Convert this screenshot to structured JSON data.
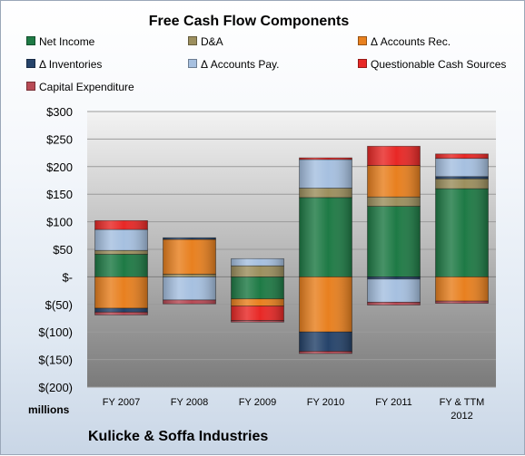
{
  "chart_data": {
    "type": "bar",
    "stacked": true,
    "title": "Free Cash Flow Components",
    "units_label": "millions",
    "company": "Kulicke & Soffa Industries",
    "categories": [
      "FY 2007",
      "FY 2008",
      "FY 2009",
      "FY 2010",
      "FY 2011",
      "FY & TTM 2012"
    ],
    "ylim": [
      -200,
      300
    ],
    "yticks": [
      300,
      250,
      200,
      150,
      100,
      50,
      0,
      -50,
      -100,
      -150,
      -200
    ],
    "ytick_labels": [
      "$300",
      "$250",
      "$200",
      "$150",
      "$100",
      "$50",
      "$-",
      "$(50)",
      "$(100)",
      "$(150)",
      "$(200)"
    ],
    "grid": true,
    "legend_position": "top",
    "series": [
      {
        "name": "Net Income",
        "color": "#1e7a45",
        "values": [
          41,
          0,
          -40,
          144,
          128,
          160
        ]
      },
      {
        "name": "D&A",
        "color": "#9c8f5e",
        "values": [
          7,
          5,
          20,
          17,
          17,
          18
        ]
      },
      {
        "name": "Δ Accounts Rec.",
        "color": "#e8801f",
        "values": [
          -57,
          63,
          -13,
          -100,
          57,
          -44
        ]
      },
      {
        "name": "Δ Inventories",
        "color": "#25436a",
        "values": [
          -7,
          3,
          0,
          -35,
          -4,
          4
        ]
      },
      {
        "name": "Δ Accounts Pay.",
        "color": "#a6c0e0",
        "values": [
          38,
          -42,
          13,
          52,
          -42,
          33
        ]
      },
      {
        "name": "Questionable Cash Sources",
        "color": "#e82826",
        "values": [
          16,
          0,
          -26,
          3,
          35,
          8
        ]
      },
      {
        "name": "Capital Expenditure",
        "color": "#b84a55",
        "values": [
          -5,
          -7,
          -3,
          -4,
          -5,
          -4
        ]
      }
    ]
  }
}
